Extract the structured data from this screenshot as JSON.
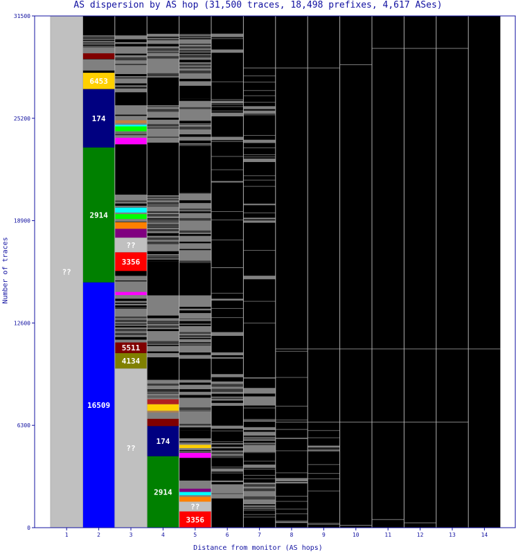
{
  "chart_data": {
    "type": "stacked-bar",
    "title": "AS dispersion by AS hop (31,500 traces, 18,498 prefixes, 4,617 ASes)",
    "xlabel": "Distance from monitor (AS hops)",
    "ylabel": "Number of traces",
    "ylim": [
      0,
      31500
    ],
    "yticks": [
      0,
      6300,
      12600,
      18900,
      25200,
      31500
    ],
    "ytick_labels": [
      "0",
      "6300",
      "12600",
      "18900",
      "25200",
      "31500"
    ],
    "categories": [
      "1",
      "2",
      "3",
      "4",
      "5",
      "6",
      "7",
      "8",
      "9",
      "10",
      "11",
      "12",
      "13",
      "14"
    ],
    "colors": {
      "frame": "#1010a0",
      "unknown": "#c0c0c0",
      "ended": "#000000",
      "minor": "#808080",
      "divider": "#b0b0b0",
      "as_16509": "#0000ff",
      "as_2914": "#008000",
      "as_174": "#000080",
      "as_3356": "#ff0000",
      "as_4134": "#808000",
      "as_5511": "#800000",
      "as_6453": "#ffd000"
    },
    "labeled_segments": [
      {
        "hop": 1,
        "as": "??",
        "from": 0,
        "to": 31500
      },
      {
        "hop": 2,
        "as": "16509",
        "from": 0,
        "to": 15100
      },
      {
        "hop": 2,
        "as": "2914",
        "from": 15100,
        "to": 23400
      },
      {
        "hop": 2,
        "as": "174",
        "from": 23400,
        "to": 27000
      },
      {
        "hop": 2,
        "as": "6453",
        "from": 27000,
        "to": 28000
      },
      {
        "hop": 3,
        "as": "??",
        "from": 0,
        "to": 9800
      },
      {
        "hop": 3,
        "as": "4134",
        "from": 9800,
        "to": 10750
      },
      {
        "hop": 3,
        "as": "5511",
        "from": 10750,
        "to": 11400
      },
      {
        "hop": 3,
        "as": "3356",
        "from": 15800,
        "to": 16950
      },
      {
        "hop": 3,
        "as": "??",
        "from": 16950,
        "to": 17850
      },
      {
        "hop": 4,
        "as": "2914",
        "from": 0,
        "to": 4400
      },
      {
        "hop": 4,
        "as": "174",
        "from": 4400,
        "to": 6250
      },
      {
        "hop": 5,
        "as": "3356",
        "from": 0,
        "to": 1000
      },
      {
        "hop": 5,
        "as": "??",
        "from": 1000,
        "to": 1600
      }
    ]
  }
}
